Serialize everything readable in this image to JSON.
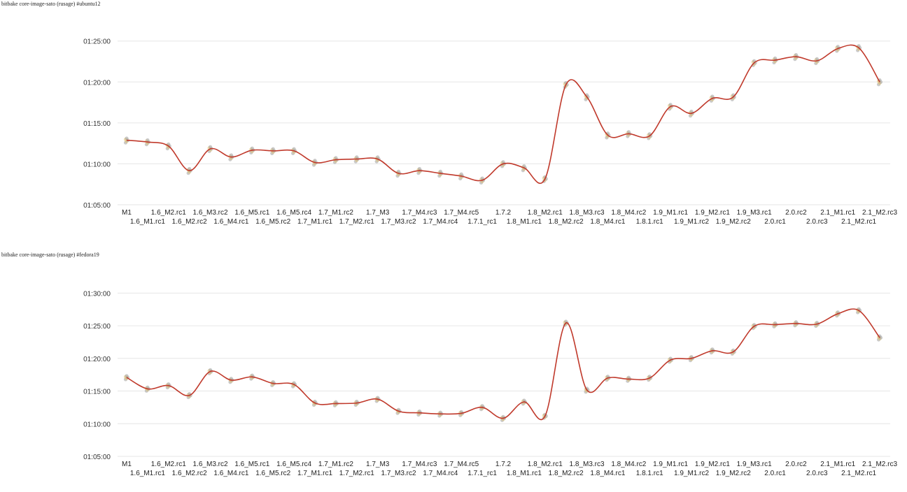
{
  "charts": [
    {
      "title": "bitbake core-image-sato (rusage) #ubuntu12"
    },
    {
      "title": "bitbake core-image-sato (rusage) #fedora19"
    }
  ],
  "colors": {
    "line": "#c0392b",
    "scatter_gray": "#9e9e9e",
    "scatter_yellow": "#e0c070",
    "grid": "#e6e6e6",
    "axis": "#cccccc"
  },
  "chart_data": [
    {
      "type": "line",
      "title": "bitbake core-image-sato (rusage) #ubuntu12",
      "categories": [
        "M1",
        "1.6_M1.rc1",
        "1.6_M2.rc1",
        "1.6_M2.rc2",
        "1.6_M3.rc2",
        "1.6_M4.rc1",
        "1.6_M5.rc1",
        "1.6_M5.rc2",
        "1.6_M5.rc4",
        "1.7_M1.rc1",
        "1.7_M1.rc2",
        "1.7_M2.rc1",
        "1.7_M3",
        "1.7_M3.rc2",
        "1.7_M4.rc3",
        "1.7_M4.rc4",
        "1.7_M4.rc5",
        "1.7.1_rc1",
        "1.7.2",
        "1.8_M1.rc1",
        "1.8_M2.rc1",
        "1.8_M2.rc2",
        "1.8_M3.rc3",
        "1.8_M4.rc1",
        "1.8_M4.rc2",
        "1.8.1.rc1",
        "1.9_M1.rc1",
        "1.9_M1.rc2",
        "1.9_M2.rc1",
        "1.9_M2.rc2",
        "1.9_M3.rc1",
        "2.0.rc1",
        "2.0.rc2",
        "2.0.rc3",
        "2.1_M1.rc1",
        "2.1_M2.rc1",
        "2.1_M2.rc3"
      ],
      "yticks": [
        "01:05:00",
        "01:10:00",
        "01:15:00",
        "01:20:00",
        "01:25:00"
      ],
      "ylim_seconds": [
        3900,
        5160
      ],
      "xlabel": "",
      "ylabel": "",
      "grid": true,
      "series": [
        {
          "values_seconds": [
            4373,
            4360,
            4330,
            4150,
            4310,
            4250,
            4300,
            4295,
            4295,
            4210,
            4230,
            4235,
            4235,
            4130,
            4150,
            4130,
            4110,
            4080,
            4200,
            4170,
            4090,
            4780,
            4690,
            4410,
            4420,
            4405,
            4620,
            4570,
            4680,
            4690,
            4940,
            4960,
            4985,
            4955,
            5045,
            5050,
            4800
          ]
        }
      ]
    },
    {
      "type": "line",
      "title": "bitbake core-image-sato (rusage) #fedora19",
      "categories": [
        "M1",
        "1.6_M1.rc1",
        "1.6_M2.rc1",
        "1.6_M2.rc2",
        "1.6_M3.rc2",
        "1.6_M4.rc1",
        "1.6_M5.rc1",
        "1.6_M5.rc2",
        "1.6_M5.rc4",
        "1.7_M1.rc1",
        "1.7_M1.rc2",
        "1.7_M2.rc1",
        "1.7_M3",
        "1.7_M3.rc2",
        "1.7_M4.rc3",
        "1.7_M4.rc4",
        "1.7_M4.rc5",
        "1.7.1_rc1",
        "1.7.2",
        "1.8_M1.rc1",
        "1.8_M2.rc1",
        "1.8_M2.rc2",
        "1.8_M3.rc3",
        "1.8_M4.rc1",
        "1.8_M4.rc2",
        "1.8.1.rc1",
        "1.9_M1.rc1",
        "1.9_M1.rc2",
        "1.9_M2.rc1",
        "1.9_M2.rc2",
        "1.9_M3.rc1",
        "2.0.rc1",
        "2.0.rc2",
        "2.0.rc3",
        "2.1_M1.rc1",
        "2.1_M2.rc1",
        "2.1_M2.rc3"
      ],
      "yticks": [
        "01:05:00",
        "01:10:00",
        "01:15:00",
        "01:20:00",
        "01:25:00",
        "01:30:00"
      ],
      "ylim_seconds": [
        3900,
        5460
      ],
      "xlabel": "",
      "ylabel": "",
      "grid": true,
      "series": [
        {
          "values_seconds": [
            4625,
            4520,
            4550,
            4460,
            4680,
            4600,
            4630,
            4570,
            4560,
            4390,
            4385,
            4390,
            4425,
            4315,
            4300,
            4290,
            4295,
            4350,
            4250,
            4400,
            4270,
            5125,
            4510,
            4620,
            4610,
            4620,
            4785,
            4800,
            4870,
            4860,
            5095,
            5110,
            5120,
            5115,
            5210,
            5240,
            4990
          ]
        }
      ]
    }
  ]
}
